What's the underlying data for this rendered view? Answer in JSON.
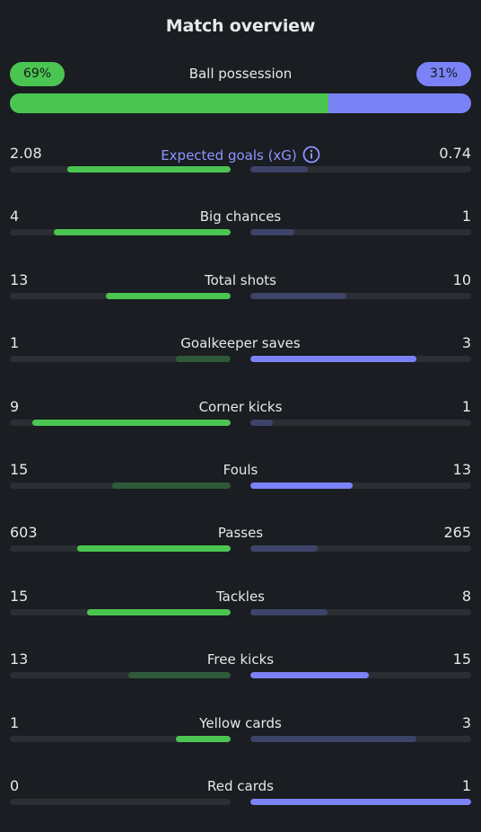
{
  "header": {
    "title": "Match overview"
  },
  "possession": {
    "label": "Ball possession",
    "home_text": "69%",
    "away_text": "31%",
    "home_fraction": 0.69
  },
  "stats": [
    {
      "label": "Expected goals (xG)",
      "home": "2.08",
      "away": "0.74",
      "home_fill": 0.74,
      "away_fill": 0.26,
      "highlight": true,
      "home_leads": true,
      "info_icon": "info-icon"
    },
    {
      "label": "Big chances",
      "home": "4",
      "away": "1",
      "home_fill": 0.8,
      "away_fill": 0.2,
      "home_leads": true
    },
    {
      "label": "Total shots",
      "home": "13",
      "away": "10",
      "home_fill": 0.565,
      "away_fill": 0.435,
      "home_leads": true
    },
    {
      "label": "Goalkeeper saves",
      "home": "1",
      "away": "3",
      "home_fill": 0.25,
      "away_fill": 0.75,
      "home_leads": false
    },
    {
      "label": "Corner kicks",
      "home": "9",
      "away": "1",
      "home_fill": 0.9,
      "away_fill": 0.1,
      "home_leads": true
    },
    {
      "label": "Fouls",
      "home": "15",
      "away": "13",
      "home_fill": 0.536,
      "away_fill": 0.464,
      "home_leads": false
    },
    {
      "label": "Passes",
      "home": "603",
      "away": "265",
      "home_fill": 0.695,
      "away_fill": 0.305,
      "home_leads": true
    },
    {
      "label": "Tackles",
      "home": "15",
      "away": "8",
      "home_fill": 0.652,
      "away_fill": 0.348,
      "home_leads": true
    },
    {
      "label": "Free kicks",
      "home": "13",
      "away": "15",
      "home_fill": 0.464,
      "away_fill": 0.536,
      "home_leads": false
    },
    {
      "label": "Yellow cards",
      "home": "1",
      "away": "3",
      "home_fill": 0.25,
      "away_fill": 0.75,
      "home_leads": true
    },
    {
      "label": "Red cards",
      "home": "0",
      "away": "1",
      "home_fill": 0.0,
      "away_fill": 1.0,
      "home_leads": false
    }
  ]
}
